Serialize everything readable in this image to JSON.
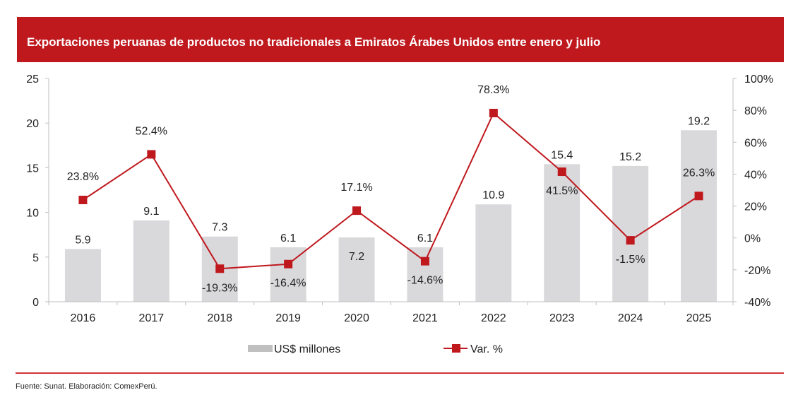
{
  "title": "Exportaciones peruanas de productos no tradicionales a Emiratos Árabes Unidos entre enero y julio",
  "source": "Fuente: Sunat. Elaboración: ComexPerú.",
  "colors": {
    "bar": "#d9d9dc",
    "line": "#bf191e",
    "title_bg": "#bf191e"
  },
  "chart_data": {
    "type": "bar",
    "title": "Exportaciones peruanas de productos no tradicionales a Emiratos Árabes Unidos entre enero y julio",
    "categories": [
      "2016",
      "2017",
      "2018",
      "2019",
      "2020",
      "2021",
      "2022",
      "2023",
      "2024",
      "2025"
    ],
    "series": [
      {
        "name": "US$ millones",
        "type": "bar",
        "axis": "left",
        "values": [
          5.9,
          9.1,
          7.3,
          6.1,
          7.2,
          6.1,
          10.9,
          15.4,
          15.2,
          19.2
        ],
        "labels": [
          "5.9",
          "9.1",
          "7.3",
          "6.1",
          "7.2",
          "6.1",
          "10.9",
          "15.4",
          "15.2",
          "19.2"
        ]
      },
      {
        "name": "Var. %",
        "type": "line",
        "axis": "right",
        "values": [
          23.8,
          52.4,
          -19.3,
          -16.4,
          17.1,
          -14.6,
          78.3,
          41.5,
          -1.5,
          26.3
        ],
        "labels": [
          "23.8%",
          "52.4%",
          "-19.3%",
          "-16.4%",
          "17.1%",
          "-14.6%",
          "78.3%",
          "41.5%",
          "-1.5%",
          "26.3%"
        ]
      }
    ],
    "y_left": {
      "ylim": [
        0,
        25
      ],
      "ticks": [
        "0",
        "5",
        "10",
        "15",
        "20",
        "25"
      ]
    },
    "y_right": {
      "ylim": [
        -40,
        100
      ],
      "ticks": [
        "-40%",
        "-20%",
        "0%",
        "20%",
        "40%",
        "60%",
        "80%",
        "100%"
      ]
    },
    "xlabel": "",
    "ylabel": "",
    "grid": false,
    "legend": {
      "position": "bottom",
      "entries": [
        "US$ millones",
        "Var. %"
      ]
    }
  }
}
